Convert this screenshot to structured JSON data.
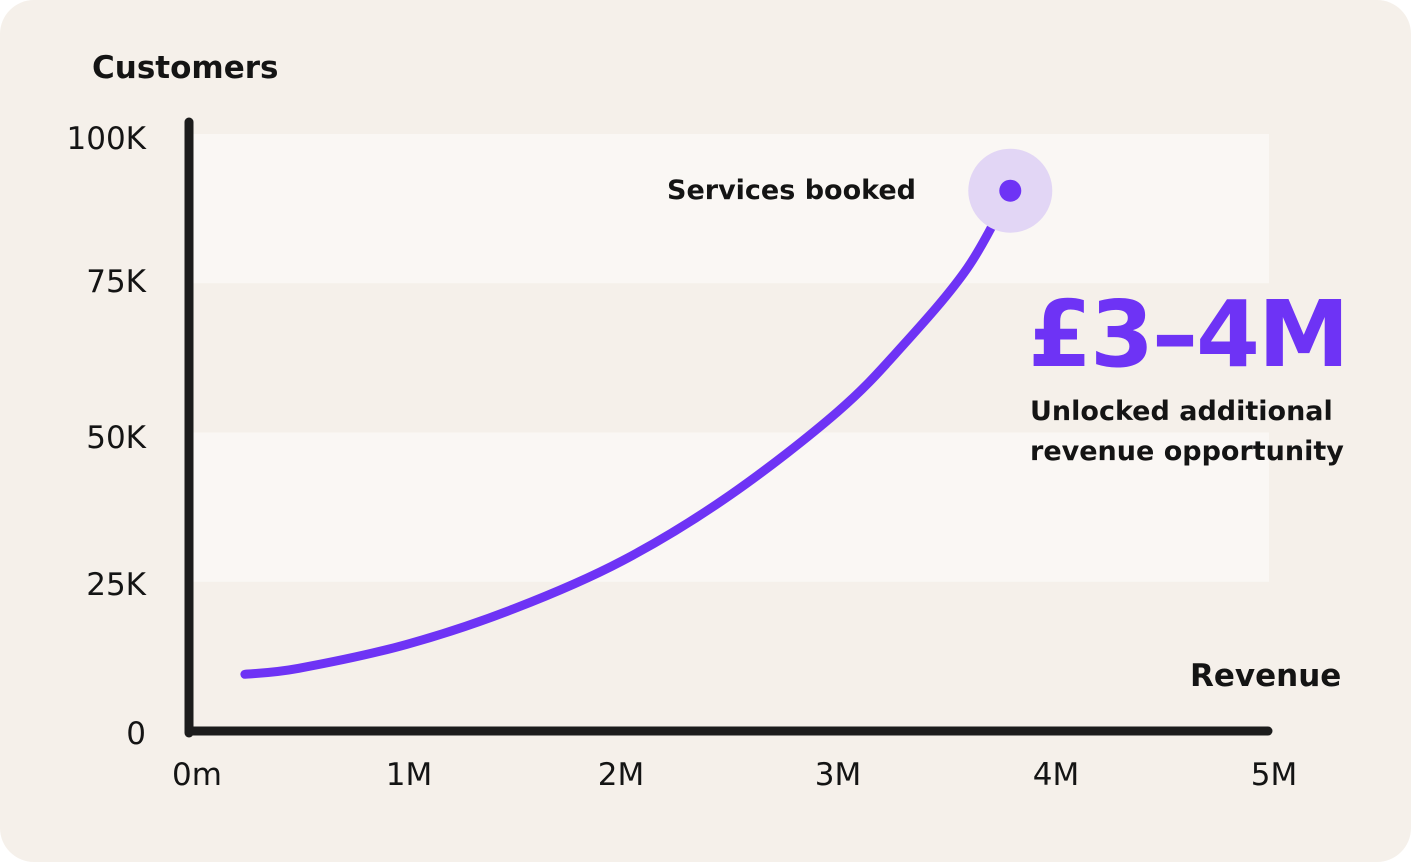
{
  "chart_data": {
    "type": "line",
    "xlabel": "Revenue",
    "ylabel": "Customers",
    "x_ticks": [
      "0m",
      "1M",
      "2M",
      "3M",
      "4M",
      "5M"
    ],
    "y_ticks": [
      "0",
      "25K",
      "50K",
      "75K",
      "100K"
    ],
    "xlim": [
      0,
      5
    ],
    "ylim": [
      0,
      100
    ],
    "x_unit_note": "millions",
    "y_unit_note": "thousands",
    "grid": "horizontal bands",
    "series": [
      {
        "color": "#6e33f5",
        "x": [
          0.25,
          0.5,
          1.0,
          1.5,
          2.0,
          2.5,
          3.0,
          3.3,
          3.6,
          3.8
        ],
        "y": [
          9.5,
          10.5,
          14.5,
          20.5,
          28.5,
          39.5,
          53.5,
          64.5,
          77.5,
          90.5
        ]
      }
    ],
    "annotations": [
      {
        "text": "Services booked",
        "x": 3.8,
        "y": 90.5,
        "marker": "dot-with-halo"
      }
    ]
  },
  "highlight": {
    "value": "£3–4M",
    "line1": "Unlocked additional",
    "line2": "revenue opportunity"
  },
  "colors": {
    "background": "#f5f0ea",
    "band_light": "#faf7f4",
    "accent": "#6e33f5",
    "halo": "#e2d6f5",
    "axis": "#1c1c1c"
  }
}
